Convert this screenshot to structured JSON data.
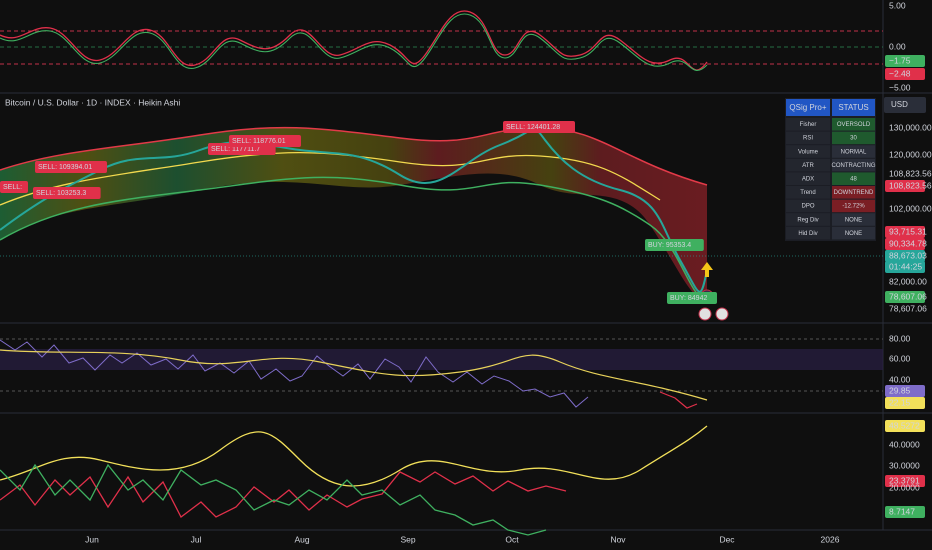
{
  "header": {
    "symbol": "Bitcoin / U.S. Dollar · 1D · INDEX · Heikin Ashi",
    "currency": "USD"
  },
  "oscillator_pane": {
    "axis": [
      "5.00",
      "0.00",
      "−5.00"
    ],
    "badges": [
      "−1.75",
      "−2.48"
    ]
  },
  "price_pane": {
    "axis": [
      "130,000.00",
      "120,000.00",
      "108,823.56",
      "108,823.56",
      "102,000.00",
      "93,715.31",
      "90,334.78",
      "88,673.03",
      "01:44:25",
      "82,000.00",
      "78,607.06",
      "78,607.06"
    ],
    "signals": [
      "SELL:",
      "SELL: 109394.01",
      "SELL: 103253.3",
      "SELL: 117711.7",
      "SELL: 118776.01",
      "SELL: 124401.28",
      "BUY: 95353.4",
      "BUY: 84942"
    ],
    "status_table": {
      "header": [
        "QSig Pro+",
        "STATUS"
      ],
      "rows": [
        [
          "Fisher",
          "OVERSOLD"
        ],
        [
          "RSI",
          "30"
        ],
        [
          "Volume",
          "NORMAL"
        ],
        [
          "ATR",
          "CONTRACTING"
        ],
        [
          "ADX",
          "48"
        ],
        [
          "Trend",
          "DOWNTREND"
        ],
        [
          "DPO",
          "-12.72%"
        ],
        [
          "Reg Div",
          "NONE"
        ],
        [
          "Hid Div",
          "NONE"
        ]
      ]
    }
  },
  "rsi_pane": {
    "axis": [
      "80.00",
      "60.00",
      "40.00"
    ],
    "badges": [
      "29.85",
      "22.15"
    ]
  },
  "dmi_pane": {
    "axis": [
      "48.5272",
      "40.0000",
      "30.0000",
      "23.3791",
      "20.0000",
      "8.7147"
    ]
  },
  "time_axis": [
    "Jun",
    "Jul",
    "Aug",
    "Sep",
    "Oct",
    "Nov",
    "Dec",
    "2026"
  ]
}
